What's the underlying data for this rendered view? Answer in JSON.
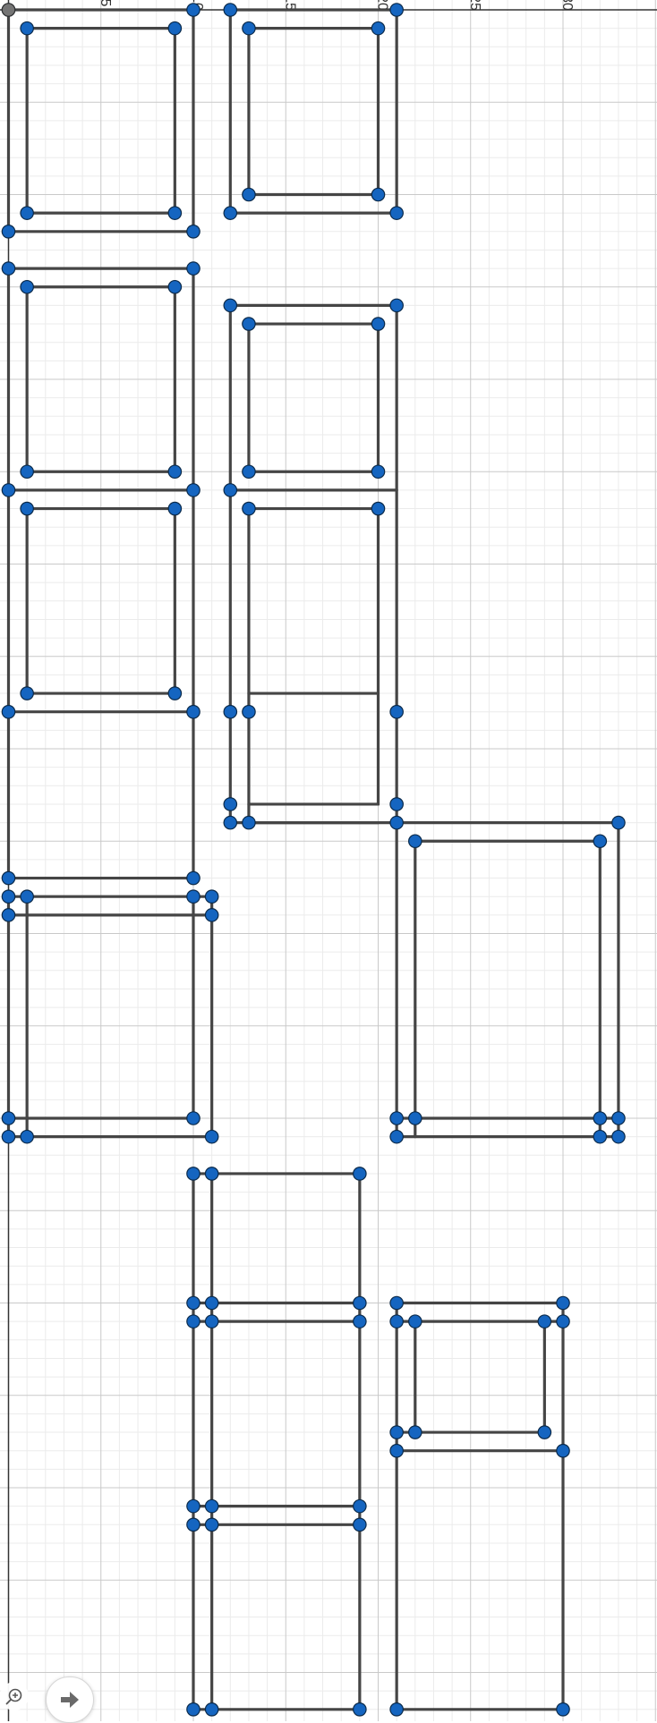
{
  "app": {
    "name": "Geometry graphing view"
  },
  "colors": {
    "point_fill": "#1565c0",
    "segment": "#454545",
    "grid_major": "#c9c9c9",
    "grid_minor": "#ebebeb",
    "origin_point": "#757575"
  },
  "controls": {
    "zoom_icon": "zoom-in-icon",
    "home_icon": "home-icon"
  },
  "chart_data": {
    "type": "scatter",
    "x_axis": {
      "visible_range": [
        -0.2,
        17.5
      ],
      "tick_labels": [
        {
          "value": 5,
          "text": "5"
        },
        {
          "value": 10,
          "text": "10"
        },
        {
          "value": 15,
          "text": "15"
        },
        {
          "value": 20,
          "text": "20"
        },
        {
          "value": 25,
          "text": "25"
        },
        {
          "value": 30,
          "text": "30"
        }
      ],
      "major_step": 2.5,
      "minor_step": 0.5
    },
    "y_axis": {
      "visible_range": [
        -46.2,
        0.3
      ]
    },
    "grid": true,
    "segments": [
      [
        0,
        0,
        5,
        0
      ],
      [
        0,
        0,
        0,
        -6
      ],
      [
        0,
        -6,
        5,
        -6
      ],
      [
        5,
        0,
        5,
        -6
      ],
      [
        0.5,
        -0.5,
        4.5,
        -0.5
      ],
      [
        0.5,
        -0.5,
        0.5,
        -5.5
      ],
      [
        0.5,
        -5.5,
        4.5,
        -5.5
      ],
      [
        4.5,
        -0.5,
        4.5,
        -5.5
      ],
      [
        6,
        0,
        10.5,
        0
      ],
      [
        6,
        0,
        6,
        -5.5
      ],
      [
        6,
        -5.5,
        10.5,
        -5.5
      ],
      [
        10.5,
        0,
        10.5,
        -5.5
      ],
      [
        6.5,
        -0.5,
        10,
        -0.5
      ],
      [
        6.5,
        -0.5,
        6.5,
        -5
      ],
      [
        6.5,
        -5,
        10,
        -5
      ],
      [
        10,
        -0.5,
        10,
        -5
      ],
      [
        0,
        -7,
        5,
        -7
      ],
      [
        0,
        -7,
        0,
        -13
      ],
      [
        0,
        -13,
        5,
        -13
      ],
      [
        5,
        -7,
        5,
        -13
      ],
      [
        0.5,
        -7.5,
        4.5,
        -7.5
      ],
      [
        0.5,
        -7.5,
        0.5,
        -12.5
      ],
      [
        0.5,
        -12.5,
        4.5,
        -12.5
      ],
      [
        4.5,
        -7.5,
        4.5,
        -12.5
      ],
      [
        0.5,
        -13.5,
        4.5,
        -13.5
      ],
      [
        0.5,
        -13.5,
        0.5,
        -18.5
      ],
      [
        0.5,
        -18.5,
        4.5,
        -18.5
      ],
      [
        4.5,
        -13.5,
        4.5,
        -18.5
      ],
      [
        0,
        -13,
        0,
        -23.5
      ],
      [
        0,
        -19,
        5,
        -19
      ],
      [
        5,
        -13,
        5,
        -23.5
      ],
      [
        0,
        -23.5,
        5,
        -23.5
      ],
      [
        6,
        -8,
        10.5,
        -8
      ],
      [
        6,
        -8,
        6,
        -22
      ],
      [
        6,
        -13,
        10.5,
        -13
      ],
      [
        10.5,
        -8,
        10.5,
        -22
      ],
      [
        6,
        -22,
        10.5,
        -22
      ],
      [
        6.5,
        -8.5,
        10,
        -8.5
      ],
      [
        6.5,
        -8.5,
        6.5,
        -12.5
      ],
      [
        6.5,
        -12.5,
        10,
        -12.5
      ],
      [
        10,
        -8.5,
        10,
        -12.5
      ],
      [
        6.5,
        -13.5,
        10,
        -13.5
      ],
      [
        6.5,
        -13.5,
        6.5,
        -22
      ],
      [
        6.5,
        -18.5,
        10,
        -18.5
      ],
      [
        10,
        -13.5,
        10,
        -21.5
      ],
      [
        6.5,
        -21.5,
        10,
        -21.5
      ],
      [
        6.5,
        -22,
        10,
        -22
      ],
      [
        0,
        -24,
        5.5,
        -24
      ],
      [
        0,
        -24,
        0,
        -30.5
      ],
      [
        0,
        -30,
        5,
        -30
      ],
      [
        5.5,
        -24,
        5.5,
        -30.5
      ],
      [
        0,
        -30.5,
        5.5,
        -30.5
      ],
      [
        0.5,
        -24,
        0.5,
        -30.5
      ],
      [
        0,
        -24.5,
        5.5,
        -24.5
      ],
      [
        5,
        -24,
        5,
        -30
      ],
      [
        10.5,
        -22,
        16.5,
        -22
      ],
      [
        10.5,
        -22,
        10.5,
        -30.5
      ],
      [
        10.5,
        -30.5,
        16.5,
        -30.5
      ],
      [
        16.5,
        -22,
        16.5,
        -30.5
      ],
      [
        11,
        -22.5,
        16,
        -22.5
      ],
      [
        11,
        -22.5,
        11,
        -30.5
      ],
      [
        16,
        -22.5,
        16,
        -30.5
      ],
      [
        10.5,
        -30,
        16.5,
        -30
      ],
      [
        5,
        -31.5,
        9.5,
        -31.5
      ],
      [
        5,
        -31.5,
        5,
        -46
      ],
      [
        5.5,
        -31.5,
        5.5,
        -46
      ],
      [
        9.5,
        -31.5,
        9.5,
        -46
      ],
      [
        5,
        -35,
        9.5,
        -35
      ],
      [
        5,
        -35.5,
        9.5,
        -35.5
      ],
      [
        5,
        -40.5,
        9.5,
        -40.5
      ],
      [
        5,
        -41,
        9.5,
        -41
      ],
      [
        5,
        -46,
        9.5,
        -46
      ],
      [
        10.5,
        -35,
        15,
        -35
      ],
      [
        10.5,
        -35,
        10.5,
        -46
      ],
      [
        15,
        -35,
        15,
        -46
      ],
      [
        10.5,
        -46,
        15,
        -46
      ],
      [
        10.5,
        -35.5,
        15,
        -35.5
      ],
      [
        11,
        -35.5,
        11,
        -38.5
      ],
      [
        14.5,
        -35.5,
        14.5,
        -38.5
      ],
      [
        10.5,
        -38.5,
        14.5,
        -38.5
      ],
      [
        10.5,
        -39,
        15,
        -39
      ]
    ],
    "points": [
      [
        0,
        0
      ],
      [
        5,
        0
      ],
      [
        0,
        -6
      ],
      [
        5,
        -6
      ],
      [
        0.5,
        -0.5
      ],
      [
        4.5,
        -0.5
      ],
      [
        0.5,
        -5.5
      ],
      [
        4.5,
        -5.5
      ],
      [
        6,
        0
      ],
      [
        10.5,
        0
      ],
      [
        6,
        -5.5
      ],
      [
        10.5,
        -5.5
      ],
      [
        6.5,
        -0.5
      ],
      [
        10,
        -0.5
      ],
      [
        6.5,
        -5
      ],
      [
        10,
        -5
      ],
      [
        0,
        -7
      ],
      [
        5,
        -7
      ],
      [
        0,
        -13
      ],
      [
        5,
        -13
      ],
      [
        0.5,
        -7.5
      ],
      [
        4.5,
        -7.5
      ],
      [
        0.5,
        -12.5
      ],
      [
        4.5,
        -12.5
      ],
      [
        0.5,
        -13.5
      ],
      [
        4.5,
        -13.5
      ],
      [
        0.5,
        -18.5
      ],
      [
        4.5,
        -18.5
      ],
      [
        0,
        -19
      ],
      [
        5,
        -19
      ],
      [
        0,
        -23.5
      ],
      [
        5,
        -23.5
      ],
      [
        6,
        -8
      ],
      [
        10.5,
        -8
      ],
      [
        6.5,
        -8.5
      ],
      [
        10,
        -8.5
      ],
      [
        6,
        -13
      ],
      [
        6.5,
        -12.5
      ],
      [
        10,
        -12.5
      ],
      [
        6.5,
        -13.5
      ],
      [
        10,
        -13.5
      ],
      [
        6,
        -19
      ],
      [
        6.5,
        -19
      ],
      [
        10.5,
        -19
      ],
      [
        6,
        -21.5
      ],
      [
        10.5,
        -21.5
      ],
      [
        6,
        -22
      ],
      [
        6.5,
        -22
      ],
      [
        10.5,
        -22
      ],
      [
        0,
        -24
      ],
      [
        0.5,
        -24
      ],
      [
        5,
        -24
      ],
      [
        5.5,
        -24
      ],
      [
        0,
        -24.5
      ],
      [
        5.5,
        -24.5
      ],
      [
        0,
        -30
      ],
      [
        5,
        -30
      ],
      [
        0,
        -30.5
      ],
      [
        0.5,
        -30.5
      ],
      [
        5.5,
        -30.5
      ],
      [
        16.5,
        -22
      ],
      [
        11,
        -22.5
      ],
      [
        16,
        -22.5
      ],
      [
        10.5,
        -30
      ],
      [
        11,
        -30
      ],
      [
        16,
        -30
      ],
      [
        16.5,
        -30
      ],
      [
        10.5,
        -30.5
      ],
      [
        16,
        -30.5
      ],
      [
        16.5,
        -30.5
      ],
      [
        5,
        -31.5
      ],
      [
        5.5,
        -31.5
      ],
      [
        9.5,
        -31.5
      ],
      [
        5,
        -35
      ],
      [
        5.5,
        -35
      ],
      [
        9.5,
        -35
      ],
      [
        5,
        -35.5
      ],
      [
        5.5,
        -35.5
      ],
      [
        9.5,
        -35.5
      ],
      [
        5,
        -40.5
      ],
      [
        5.5,
        -40.5
      ],
      [
        9.5,
        -40.5
      ],
      [
        5,
        -41
      ],
      [
        5.5,
        -41
      ],
      [
        9.5,
        -41
      ],
      [
        5,
        -46
      ],
      [
        5.5,
        -46
      ],
      [
        9.5,
        -46
      ],
      [
        10.5,
        -35
      ],
      [
        15,
        -35
      ],
      [
        10.5,
        -35.5
      ],
      [
        11,
        -35.5
      ],
      [
        14.5,
        -35.5
      ],
      [
        15,
        -35.5
      ],
      [
        10.5,
        -38.5
      ],
      [
        11,
        -38.5
      ],
      [
        14.5,
        -38.5
      ],
      [
        10.5,
        -39
      ],
      [
        15,
        -39
      ],
      [
        10.5,
        -46
      ],
      [
        15,
        -46
      ]
    ],
    "origin": [
      0,
      0
    ]
  }
}
